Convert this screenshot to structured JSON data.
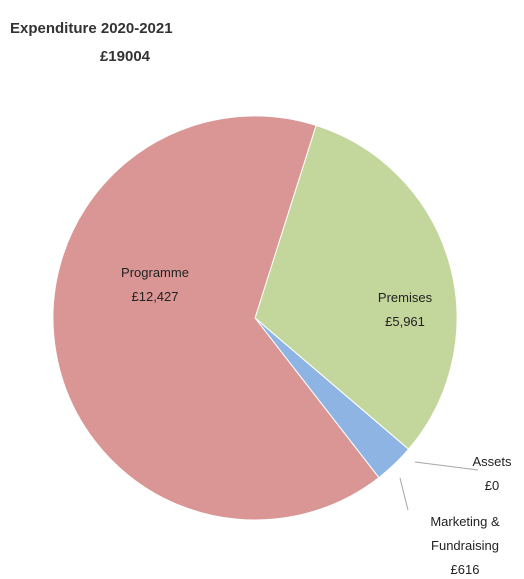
{
  "chart_data": {
    "type": "pie",
    "title": "Expenditure  2020-2021",
    "subtitle": "£19004",
    "categories": [
      "Premises",
      "Assets",
      "Marketing & Fundraising",
      "Programme"
    ],
    "values": [
      5961,
      0,
      616,
      12427
    ],
    "value_labels": [
      "£5,961",
      "£0",
      "£616",
      "£12,427"
    ],
    "colors": [
      "#c3d69b",
      "#a6a6a6",
      "#8eb4e3",
      "#d99694"
    ]
  }
}
